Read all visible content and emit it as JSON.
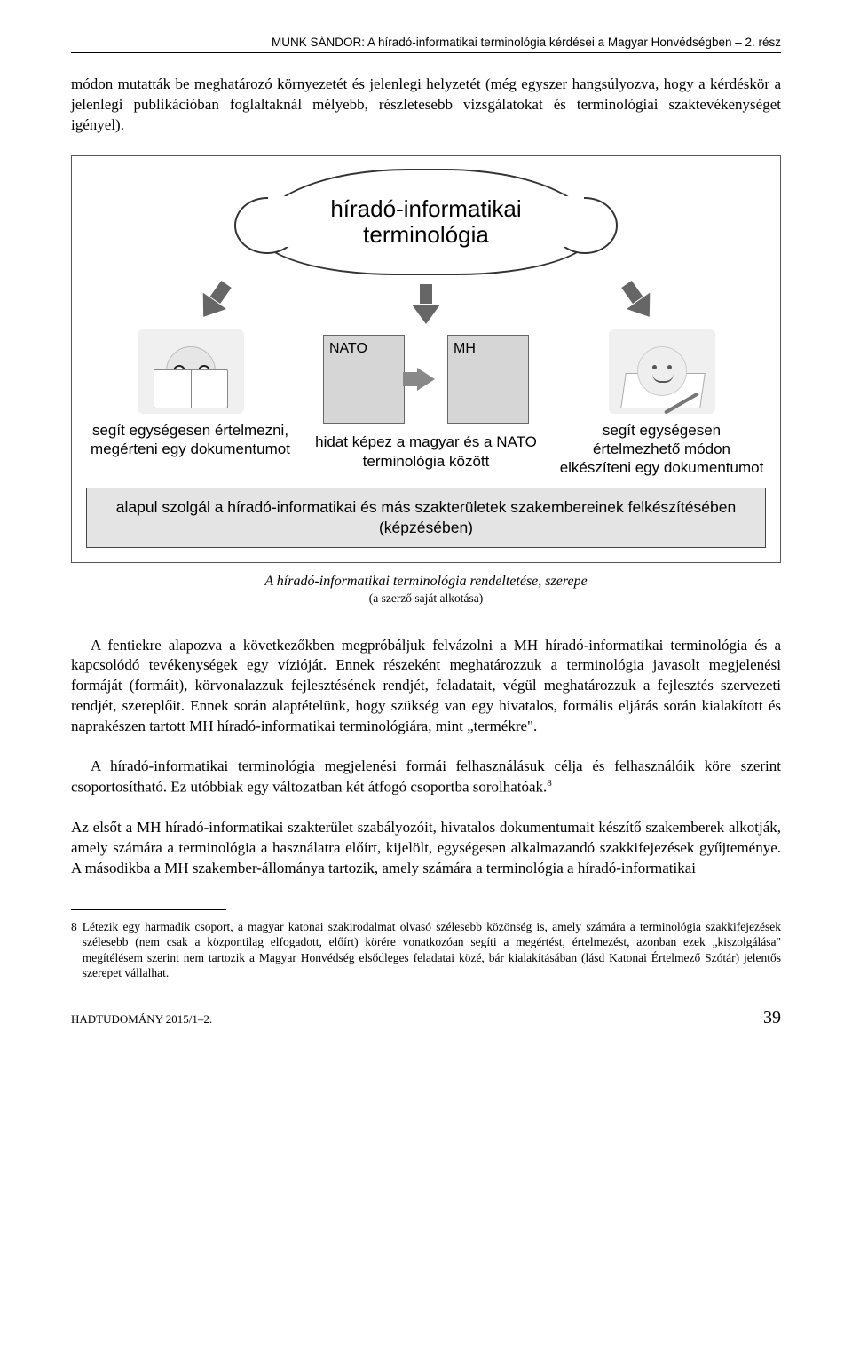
{
  "header": {
    "running": "MUNK SÁNDOR: A híradó-informatikai terminológia kérdései a Magyar Honvédségben – 2. rész"
  },
  "paragraphs": {
    "p1": "módon mutatták be meghatározó környezetét és jelenlegi helyzetét (még egyszer hangsúlyozva, hogy a kérdéskör a jelenlegi publikációban foglaltaknál mélyebb, részletesebb vizsgálatokat és terminológiai szaktevékenységet igényel).",
    "p2a": "A fentiekre alapozva a következőkben megpróbáljuk felvázolni a MH híradó-informatikai terminológia és a kapcsolódó tevékenységek egy vízióját. Ennek részeként meghatározzuk a terminológia javasolt megjelenési formáját (formáit), körvonalazzuk fejlesztésének rendjét, feladatait, végül meghatározzuk a fejlesztés szervezeti rendjét, szereplőit. Ennek során alaptételünk, hogy szükség van egy hivatalos, formális eljárás során kialakított és naprakészen tartott MH híradó-informatikai terminológiára, mint „termékre\".",
    "p2b": "A híradó-informatikai terminológia megjelenési formái felhasználásuk célja és felhasználóik köre szerint csoportosítható. Ez utóbbiak egy változatban két átfogó csoportba sorolhatóak.",
    "p2c": "Az elsőt a MH híradó-informatikai szakterület szabályozóit, hivatalos dokumentumait készítő szakemberek alkotják, amely számára a terminológia a használatra előírt, kijelölt, egységesen alkalmazandó szakkifejezések gyűjteménye. A másodikba a MH szakember-állománya tartozik, amely számára a terminológia a híradó-informatikai"
  },
  "diagram": {
    "cloud": "híradó-informatikai terminológia",
    "left_caption": "segít egységesen értelmezni, megérteni egy dokumentumot",
    "right_caption": "segít egységesen értelmezhető módon elkészíteni egy dokumentumot",
    "box_left": "NATO",
    "box_right": "MH",
    "mid_caption": "hidat képez a magyar és a NATO terminológia között",
    "bottom_bar": "alapul szolgál a híradó-informatikai és más szakterületek szakembereinek felkészítésében (képzésében)"
  },
  "figure_caption": {
    "main": "A híradó-informatikai terminológia rendeltetése, szerepe",
    "sub": "(a szerző saját alkotása)"
  },
  "footnote": {
    "num": "8",
    "text": "Létezik egy harmadik csoport, a magyar katonai szakirodalmat olvasó szélesebb közönség is, amely számára a terminológia szakkifejezések szélesebb (nem csak a központilag elfogadott, előírt) körére vonatkozóan segíti a megértést, értelmezést, azonban ezek „kiszolgálása\" megítélésem szerint nem tartozik a Magyar Honvédség elsődleges feladatai közé, bár kialakításában (lásd Katonai Értelmező Szótár) jelentős szerepet vállalhat."
  },
  "footer": {
    "left": "HADTUDOMÁNY   2015/1–2.",
    "page": "39"
  },
  "fn_marker": "8"
}
